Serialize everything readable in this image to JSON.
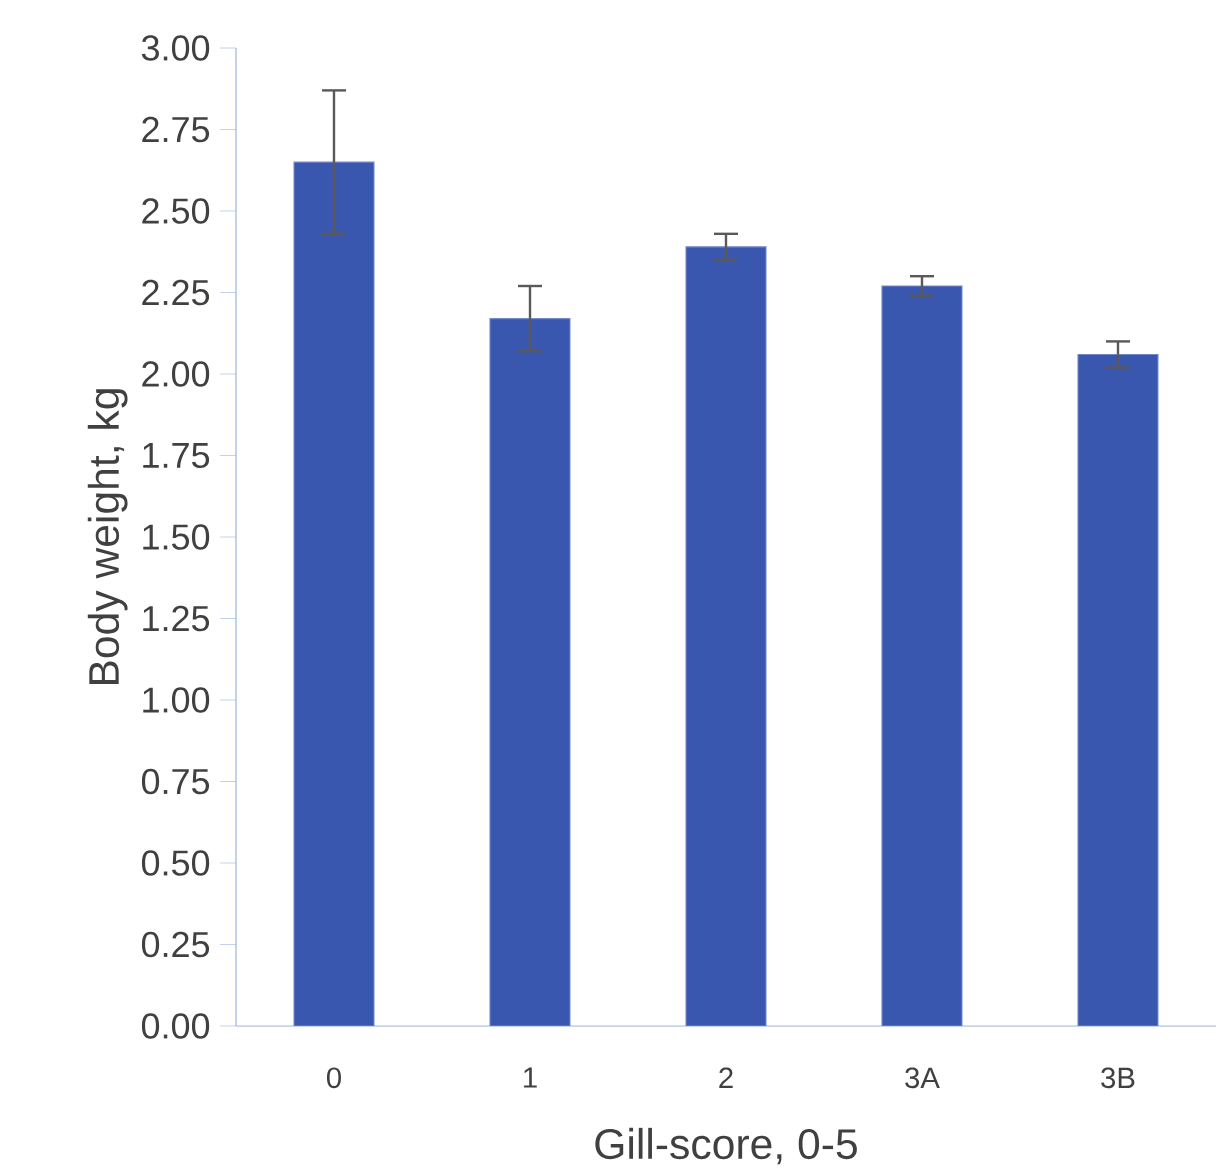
{
  "chart_data": {
    "type": "bar",
    "xlabel": "Gill-score, 0-5",
    "ylabel": "Body weight, kg",
    "categories": [
      "0",
      "1",
      "2",
      "3A",
      "3B"
    ],
    "values": [
      2.65,
      2.17,
      2.39,
      2.27,
      2.06
    ],
    "errors": [
      0.22,
      0.1,
      0.04,
      0.03,
      0.04
    ],
    "color": "#3a57b0",
    "ylim": [
      0,
      3
    ],
    "yticks": [
      {
        "value": 0,
        "label": "0.00"
      },
      {
        "value": 0.25,
        "label": "0.25"
      },
      {
        "value": 0.5,
        "label": "0.50"
      },
      {
        "value": 0.75,
        "label": "0.75"
      },
      {
        "value": 1,
        "label": "1.00"
      },
      {
        "value": 1.25,
        "label": "1.25"
      },
      {
        "value": 1.5,
        "label": "1.50"
      },
      {
        "value": 1.75,
        "label": "1.75"
      },
      {
        "value": 2,
        "label": "2.00"
      },
      {
        "value": 2.25,
        "label": "2.25"
      },
      {
        "value": 2.5,
        "label": "2.50"
      },
      {
        "value": 2.75,
        "label": "2.75"
      },
      {
        "value": 3,
        "label": "3.00"
      }
    ],
    "grid": false
  }
}
